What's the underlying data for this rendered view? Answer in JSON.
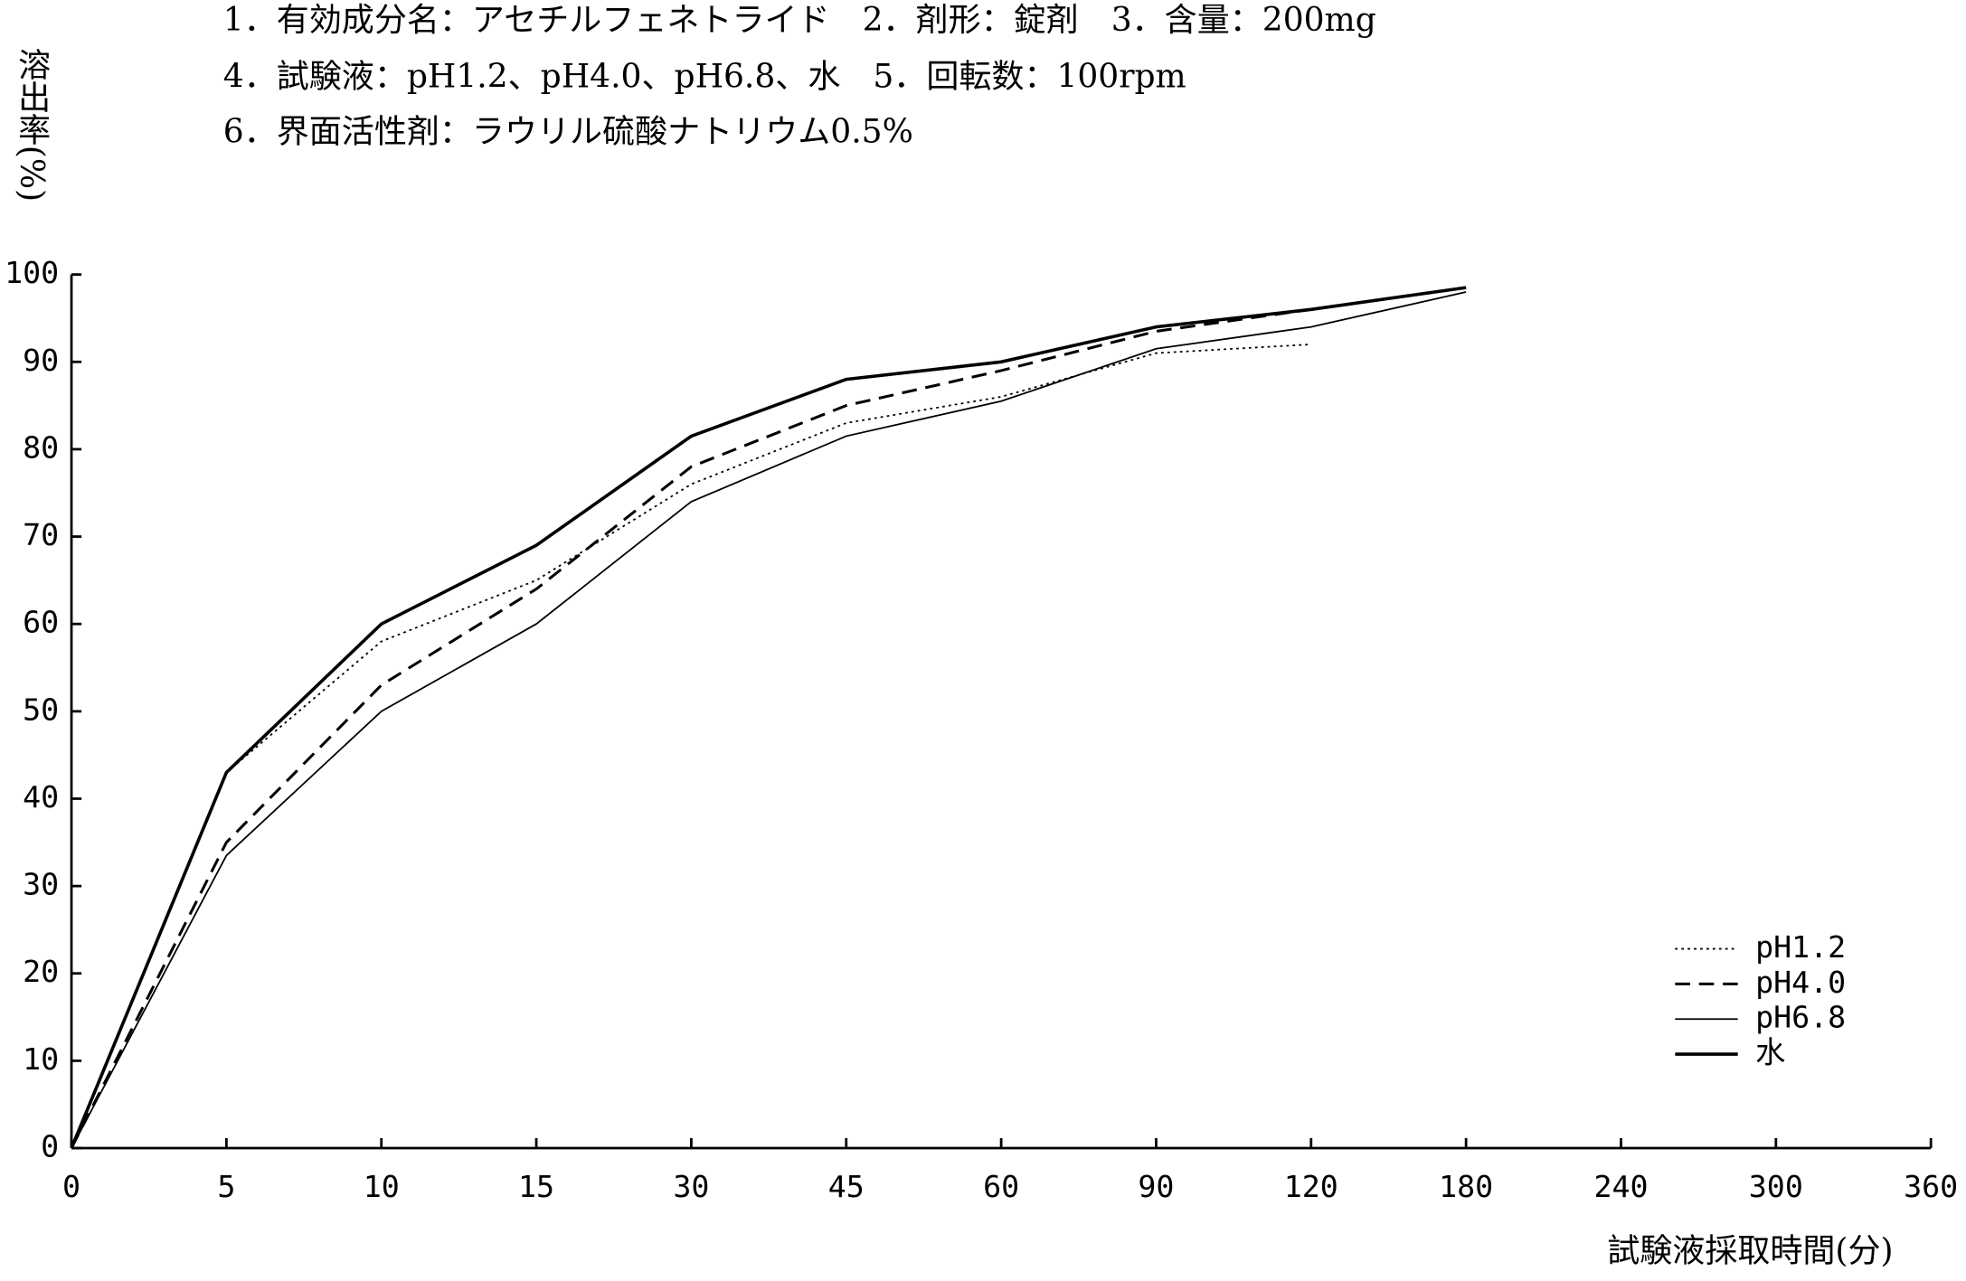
{
  "chart_data": {
    "type": "line",
    "annotations": [
      "1．有効成分名：アセチルフェネトライド　2．剤形：錠剤　3．含量：200mg",
      "4．試験液：pH1.2、pH4.0、pH6.8、水　5．回転数：100rpm",
      "6．界面活性剤：ラウリル硫酸ナトリウム0.5%"
    ],
    "y_label": "溶出率(%)",
    "x_label": "試験液採取時間(分)",
    "categories": [
      "0",
      "5",
      "10",
      "15",
      "30",
      "45",
      "60",
      "90",
      "120",
      "180",
      "240",
      "300",
      "360"
    ],
    "series": [
      {
        "name": "pH1.2",
        "color": "#000000",
        "line_style": "dotted",
        "values": [
          0,
          43,
          58,
          65,
          76,
          83,
          86,
          91,
          92,
          null,
          null,
          null,
          null
        ]
      },
      {
        "name": "pH4.0",
        "color": "#000000",
        "line_style": "dashed",
        "values": [
          0,
          35,
          53,
          64,
          78,
          85,
          89,
          93.5,
          96,
          98.5,
          null,
          null,
          null
        ]
      },
      {
        "name": "pH6.8",
        "color": "#000000",
        "line_style": "solid",
        "values": [
          0,
          33.5,
          50,
          60,
          74,
          81.5,
          85.5,
          91.5,
          94,
          98,
          null,
          null,
          null
        ]
      },
      {
        "name": "水",
        "color": "#000000",
        "line_style": "bold",
        "values": [
          0,
          43,
          60,
          69,
          81.5,
          88,
          90,
          94,
          96,
          98.5,
          null,
          null,
          null
        ]
      }
    ],
    "ylim": [
      0,
      100
    ],
    "yticks": [
      0,
      10,
      20,
      30,
      40,
      50,
      60,
      70,
      80,
      90,
      100
    ],
    "legend": "lower right"
  }
}
